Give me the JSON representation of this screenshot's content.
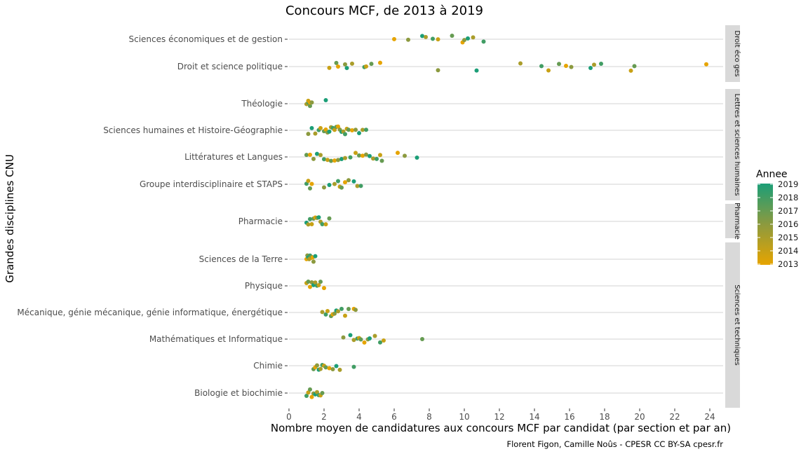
{
  "chart_data": {
    "type": "scatter",
    "title": "Concours MCF, de 2013 à 2019",
    "xlabel": "Nombre moyen de candidatures aux concours MCF par candidat (par section et par an)",
    "ylabel": "Grandes disciplines CNU",
    "caption": "Florent Figon, Camille Noûs - CPESR CC BY-SA cpesr.fr",
    "xlim": [
      0,
      24.5
    ],
    "x_ticks": [
      0,
      2,
      4,
      6,
      8,
      10,
      12,
      14,
      16,
      18,
      20,
      22,
      24
    ],
    "grid": true,
    "legend": {
      "title": "Annee",
      "position": "right",
      "years": [
        2019,
        2018,
        2017,
        2016,
        2015,
        2014,
        2013
      ],
      "color_high": "#1b9e77",
      "color_mid": "#8c9a3f",
      "color_low": "#e6a400"
    },
    "facets": [
      {
        "strip": "Droit éco ges",
        "rows": [
          {
            "category": "Sciences économiques et de gestion",
            "points": [
              6.0,
              6.8,
              7.6,
              7.8,
              8.2,
              8.5,
              9.3,
              9.9,
              10.0,
              10.2,
              10.5,
              11.1
            ]
          },
          {
            "category": "Droit et science politique",
            "points": [
              2.3,
              2.7,
              2.8,
              3.2,
              3.3,
              3.6,
              4.3,
              4.4,
              4.7,
              5.2,
              8.5,
              10.7,
              13.2,
              14.4,
              14.8,
              15.4,
              15.8,
              16.1,
              17.2,
              17.4,
              17.8,
              19.5,
              19.7,
              23.8
            ]
          }
        ]
      },
      {
        "strip": "Lettres et sciences humaines",
        "rows": [
          {
            "category": "Théologie",
            "points": [
              1.0,
              1.1,
              1.1,
              1.2,
              1.2,
              1.3,
              2.1
            ]
          },
          {
            "category": "Sciences humaines et Histoire-Géographie",
            "points": [
              1.1,
              1.3,
              1.5,
              1.7,
              1.8,
              2.0,
              2.1,
              2.2,
              2.3,
              2.4,
              2.5,
              2.6,
              2.7,
              2.8,
              2.9,
              3.0,
              3.1,
              3.2,
              3.3,
              3.4,
              3.6,
              3.8,
              4.0,
              4.2,
              4.4
            ]
          },
          {
            "category": "Littératures et Langues",
            "points": [
              1.0,
              1.2,
              1.4,
              1.6,
              1.8,
              2.0,
              2.2,
              2.4,
              2.6,
              2.8,
              3.0,
              3.2,
              3.5,
              3.8,
              4.0,
              4.2,
              4.4,
              4.6,
              4.8,
              5.0,
              5.2,
              5.3,
              6.2,
              6.6,
              7.3
            ]
          },
          {
            "category": "Groupe interdisciplinaire et STAPS",
            "points": [
              1.0,
              1.1,
              1.2,
              1.3,
              2.0,
              2.3,
              2.6,
              2.8,
              2.9,
              3.0,
              3.2,
              3.4,
              3.7,
              3.9,
              4.1
            ]
          }
        ]
      },
      {
        "strip": "Pharmacie",
        "rows": [
          {
            "category": "Pharmacie",
            "points": [
              1.0,
              1.1,
              1.2,
              1.3,
              1.4,
              1.5,
              1.6,
              1.7,
              1.8,
              1.9,
              2.1,
              2.3
            ]
          }
        ]
      },
      {
        "strip": "Sciences et techniques",
        "rows": [
          {
            "category": "Sciences de la Terre",
            "points": [
              1.0,
              1.05,
              1.1,
              1.15,
              1.2,
              1.25,
              1.3,
              1.35,
              1.4,
              1.5
            ]
          },
          {
            "category": "Physique",
            "points": [
              1.0,
              1.1,
              1.2,
              1.3,
              1.4,
              1.5,
              1.6,
              1.7,
              1.8,
              2.0
            ]
          },
          {
            "category": "Mécanique, génie mécanique, génie informatique, énergétique",
            "points": [
              1.9,
              2.1,
              2.2,
              2.4,
              2.5,
              2.6,
              2.7,
              2.8,
              3.0,
              3.2,
              3.4,
              3.7,
              3.8
            ]
          },
          {
            "category": "Mathématiques et Informatique",
            "points": [
              3.1,
              3.5,
              3.7,
              3.9,
              4.0,
              4.1,
              4.3,
              4.5,
              4.6,
              4.9,
              5.2,
              5.4,
              7.6
            ]
          },
          {
            "category": "Chimie",
            "points": [
              1.4,
              1.5,
              1.6,
              1.7,
              1.8,
              1.9,
              2.0,
              2.1,
              2.3,
              2.5,
              2.7,
              2.9,
              3.7
            ]
          },
          {
            "category": "Biologie et biochimie",
            "points": [
              1.0,
              1.1,
              1.2,
              1.3,
              1.4,
              1.5,
              1.6,
              1.7,
              1.8,
              1.9
            ]
          }
        ]
      }
    ]
  }
}
